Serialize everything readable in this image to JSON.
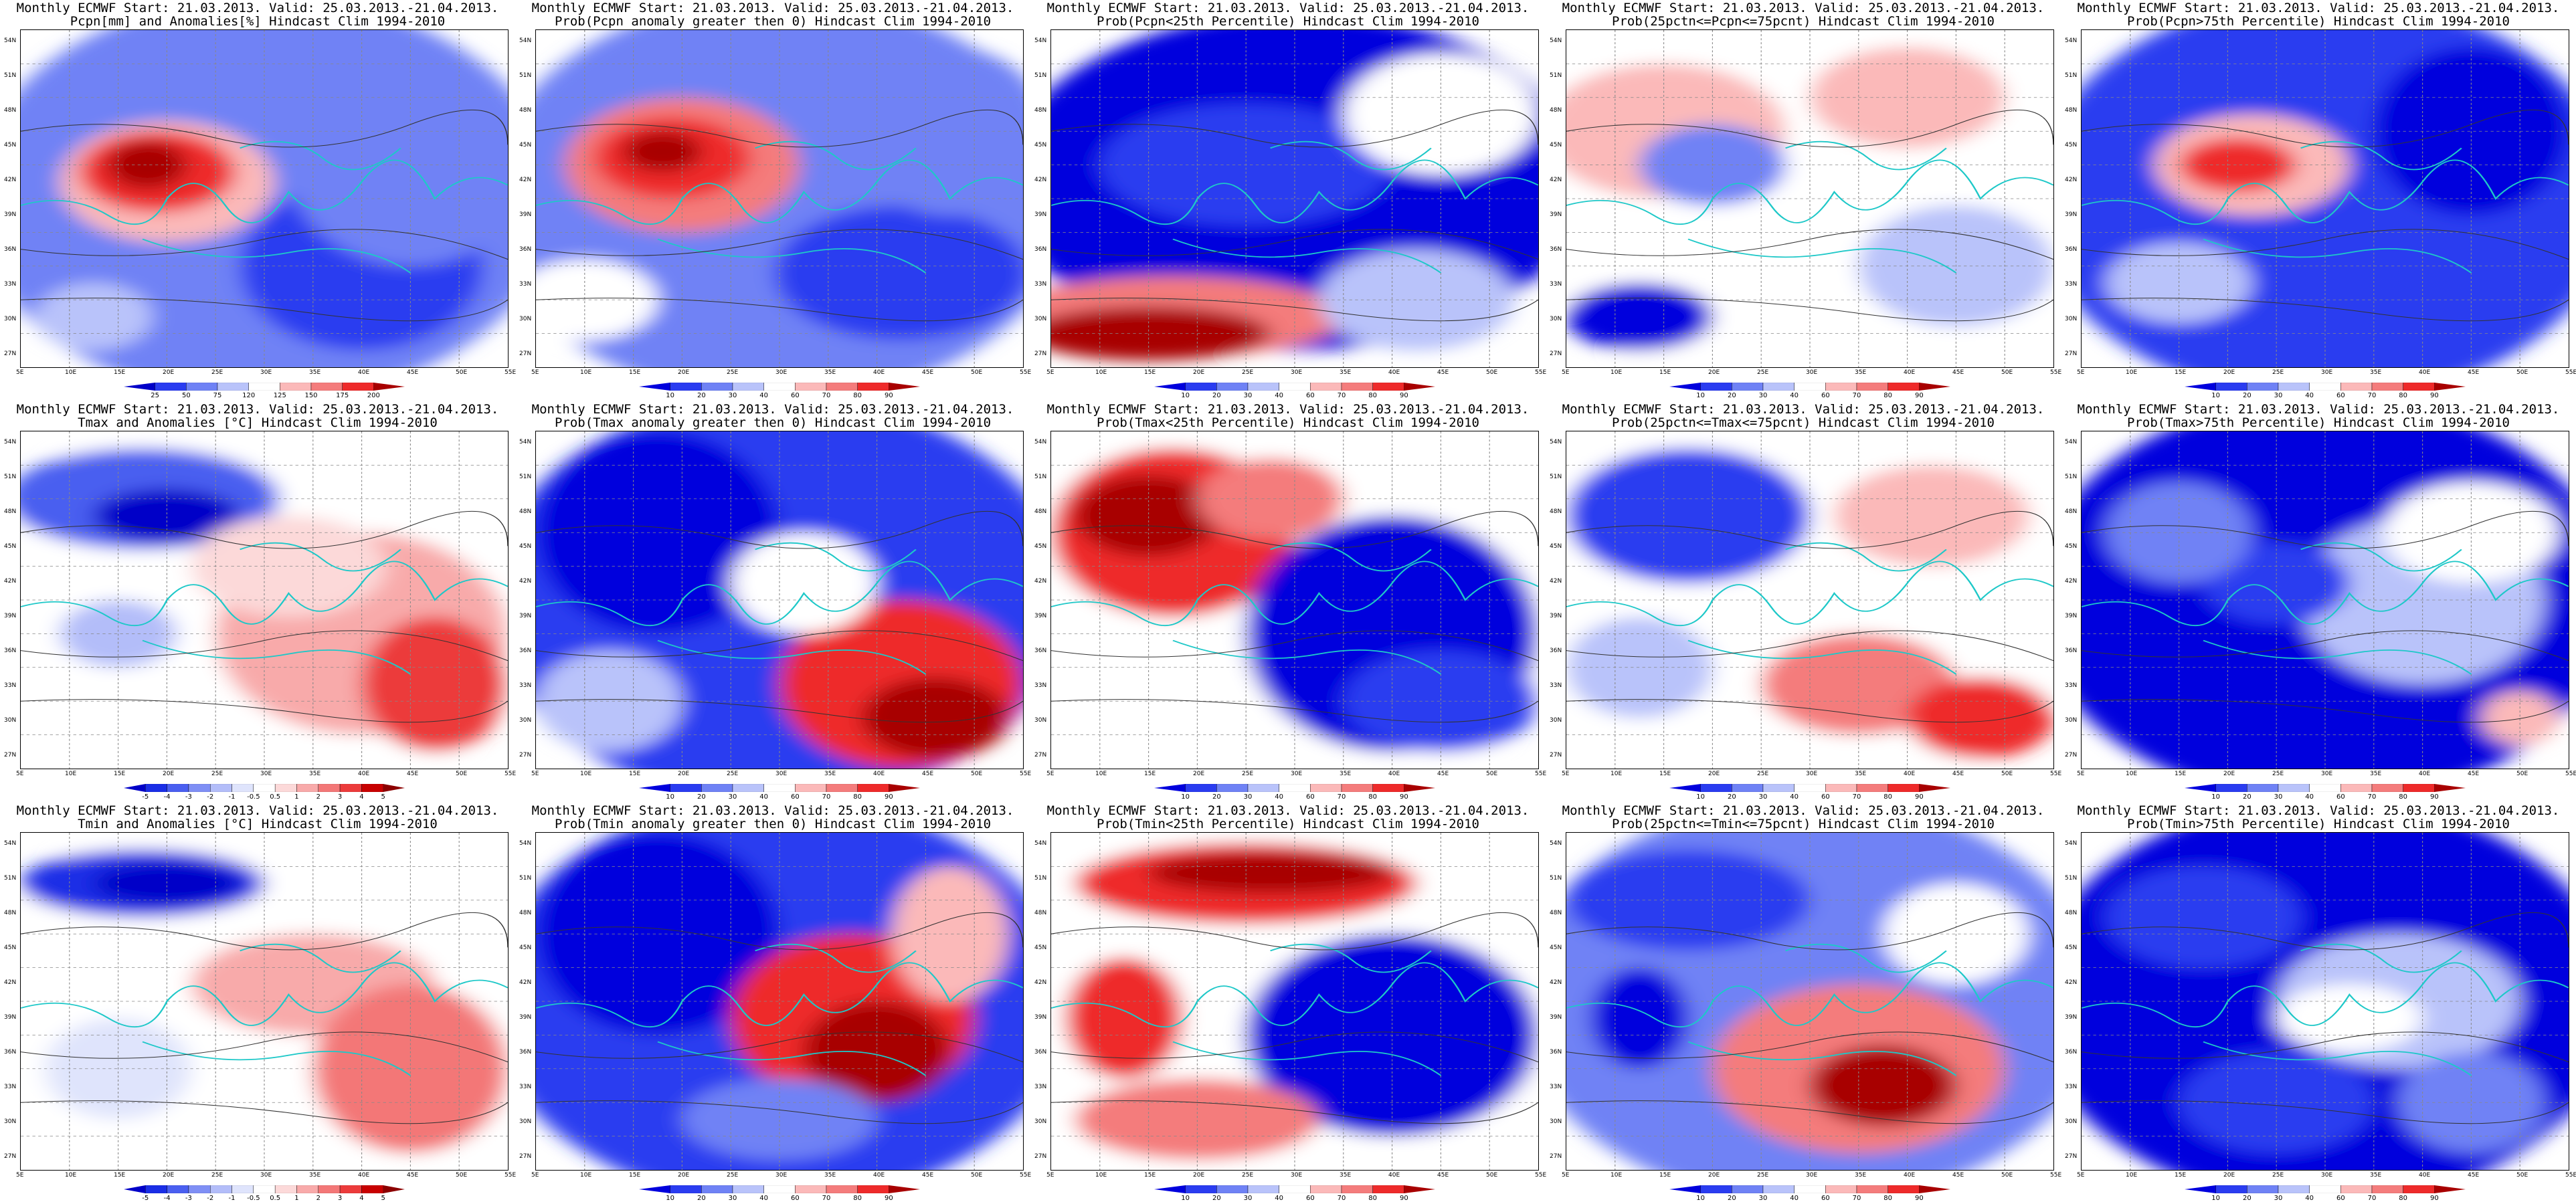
{
  "panels": [
    {
      "title1": "Monthly ECMWF Start: 21.03.2013. Valid: 25.03.2013.-21.04.2013.",
      "title2": "Pcpn[mm] and Anomalies[%] Hindcast Clim 1994-2010",
      "scheme": "anomP",
      "colorbar": [
        "25",
        "50",
        "75",
        "120",
        "125",
        "150",
        "175",
        "200"
      ]
    },
    {
      "title1": "Monthly ECMWF Start: 21.03.2013. Valid: 25.03.2013.-21.04.2013.",
      "title2": "Prob(Pcpn anomaly greater then 0) Hindcast Clim 1994-2010",
      "scheme": "prob",
      "colorbar": [
        "10",
        "20",
        "30",
        "40",
        "60",
        "70",
        "80",
        "90"
      ]
    },
    {
      "title1": "Monthly ECMWF Start: 21.03.2013. Valid: 25.03.2013.-21.04.2013.",
      "title2": "Prob(Pcpn<25th Percentile) Hindcast Clim 1994-2010",
      "scheme": "prob",
      "colorbar": [
        "10",
        "20",
        "30",
        "40",
        "60",
        "70",
        "80",
        "90"
      ]
    },
    {
      "title1": "Monthly ECMWF Start: 21.03.2013. Valid: 25.03.2013.-21.04.2013.",
      "title2": "Prob(25pctn<=Pcpn<=75pcnt) Hindcast Clim 1994-2010",
      "scheme": "prob",
      "colorbar": [
        "10",
        "20",
        "30",
        "40",
        "60",
        "70",
        "80",
        "90"
      ]
    },
    {
      "title1": "Monthly ECMWF Start: 21.03.2013. Valid: 25.03.2013.-21.04.2013.",
      "title2": "Prob(Pcpn>75th Percentile) Hindcast Clim 1994-2010",
      "scheme": "prob",
      "colorbar": [
        "10",
        "20",
        "30",
        "40",
        "60",
        "70",
        "80",
        "90"
      ]
    },
    {
      "title1": "Monthly ECMWF Start: 21.03.2013. Valid: 25.03.2013.-21.04.2013.",
      "title2": "Tmax and Anomalies [°C] Hindcast Clim 1994-2010",
      "scheme": "anomT",
      "colorbar": [
        "-5",
        "-4",
        "-3",
        "-2",
        "-1",
        "-0.5",
        "0.5",
        "1",
        "2",
        "3",
        "4",
        "5"
      ]
    },
    {
      "title1": "Monthly ECMWF Start: 21.03.2013. Valid: 25.03.2013.-21.04.2013.",
      "title2": "Prob(Tmax anomaly greater then 0) Hindcast Clim 1994-2010",
      "scheme": "prob",
      "colorbar": [
        "10",
        "20",
        "30",
        "40",
        "60",
        "70",
        "80",
        "90"
      ]
    },
    {
      "title1": "Monthly ECMWF Start: 21.03.2013. Valid: 25.03.2013.-21.04.2013.",
      "title2": "Prob(Tmax<25th Percentile) Hindcast Clim 1994-2010",
      "scheme": "prob",
      "colorbar": [
        "10",
        "20",
        "30",
        "40",
        "60",
        "70",
        "80",
        "90"
      ]
    },
    {
      "title1": "Monthly ECMWF Start: 21.03.2013. Valid: 25.03.2013.-21.04.2013.",
      "title2": "Prob(25pctn<=Tmax<=75pcnt) Hindcast Clim 1994-2010",
      "scheme": "prob",
      "colorbar": [
        "10",
        "20",
        "30",
        "40",
        "60",
        "70",
        "80",
        "90"
      ]
    },
    {
      "title1": "Monthly ECMWF Start: 21.03.2013. Valid: 25.03.2013.-21.04.2013.",
      "title2": "Prob(Tmax>75th Percentile) Hindcast Clim 1994-2010",
      "scheme": "prob",
      "colorbar": [
        "10",
        "20",
        "30",
        "40",
        "60",
        "70",
        "80",
        "90"
      ]
    },
    {
      "title1": "Monthly ECMWF Start: 21.03.2013. Valid: 25.03.2013.-21.04.2013.",
      "title2": "Tmin and Anomalies [°C] Hindcast Clim 1994-2010",
      "scheme": "anomT",
      "colorbar": [
        "-5",
        "-4",
        "-3",
        "-2",
        "-1",
        "-0.5",
        "0.5",
        "1",
        "2",
        "3",
        "4",
        "5"
      ]
    },
    {
      "title1": "Monthly ECMWF Start: 21.03.2013. Valid: 25.03.2013.-21.04.2013.",
      "title2": "Prob(Tmin anomaly greater then 0) Hindcast Clim 1994-2010",
      "scheme": "prob",
      "colorbar": [
        "10",
        "20",
        "30",
        "40",
        "60",
        "70",
        "80",
        "90"
      ]
    },
    {
      "title1": "Monthly ECMWF Start: 21.03.2013. Valid: 25.03.2013.-21.04.2013.",
      "title2": "Prob(Tmin<25th Percentile) Hindcast Clim 1994-2010",
      "scheme": "prob",
      "colorbar": [
        "10",
        "20",
        "30",
        "40",
        "60",
        "70",
        "80",
        "90"
      ]
    },
    {
      "title1": "Monthly ECMWF Start: 21.03.2013. Valid: 25.03.2013.-21.04.2013.",
      "title2": "Prob(25pctn<=Tmin<=75pcnt) Hindcast Clim 1994-2010",
      "scheme": "prob",
      "colorbar": [
        "10",
        "20",
        "30",
        "40",
        "60",
        "70",
        "80",
        "90"
      ]
    },
    {
      "title1": "Monthly ECMWF Start: 21.03.2013. Valid: 25.03.2013.-21.04.2013.",
      "title2": "Prob(Tmin>75th Percentile) Hindcast Clim 1994-2010",
      "scheme": "prob",
      "colorbar": [
        "10",
        "20",
        "30",
        "40",
        "60",
        "70",
        "80",
        "90"
      ]
    }
  ],
  "axes": {
    "lat_labels": [
      "54N",
      "51N",
      "48N",
      "45N",
      "42N",
      "39N",
      "36N",
      "33N",
      "30N",
      "27N"
    ],
    "lon_labels": [
      "5E",
      "10E",
      "15E",
      "20E",
      "25E",
      "30E",
      "35E",
      "40E",
      "45E",
      "50E",
      "55E"
    ]
  },
  "colors": {
    "deep_blue": "#0000dd",
    "blue": "#2a3cf0",
    "mid_blue": "#6f82f5",
    "light_blue": "#b9c3fa",
    "white": "#ffffff",
    "light_red": "#fbb9b9",
    "mid_red": "#f47c7c",
    "red": "#ee2a2a",
    "deep_red": "#a80000",
    "coast": "#1ec8c8",
    "contour": "#333333"
  }
}
